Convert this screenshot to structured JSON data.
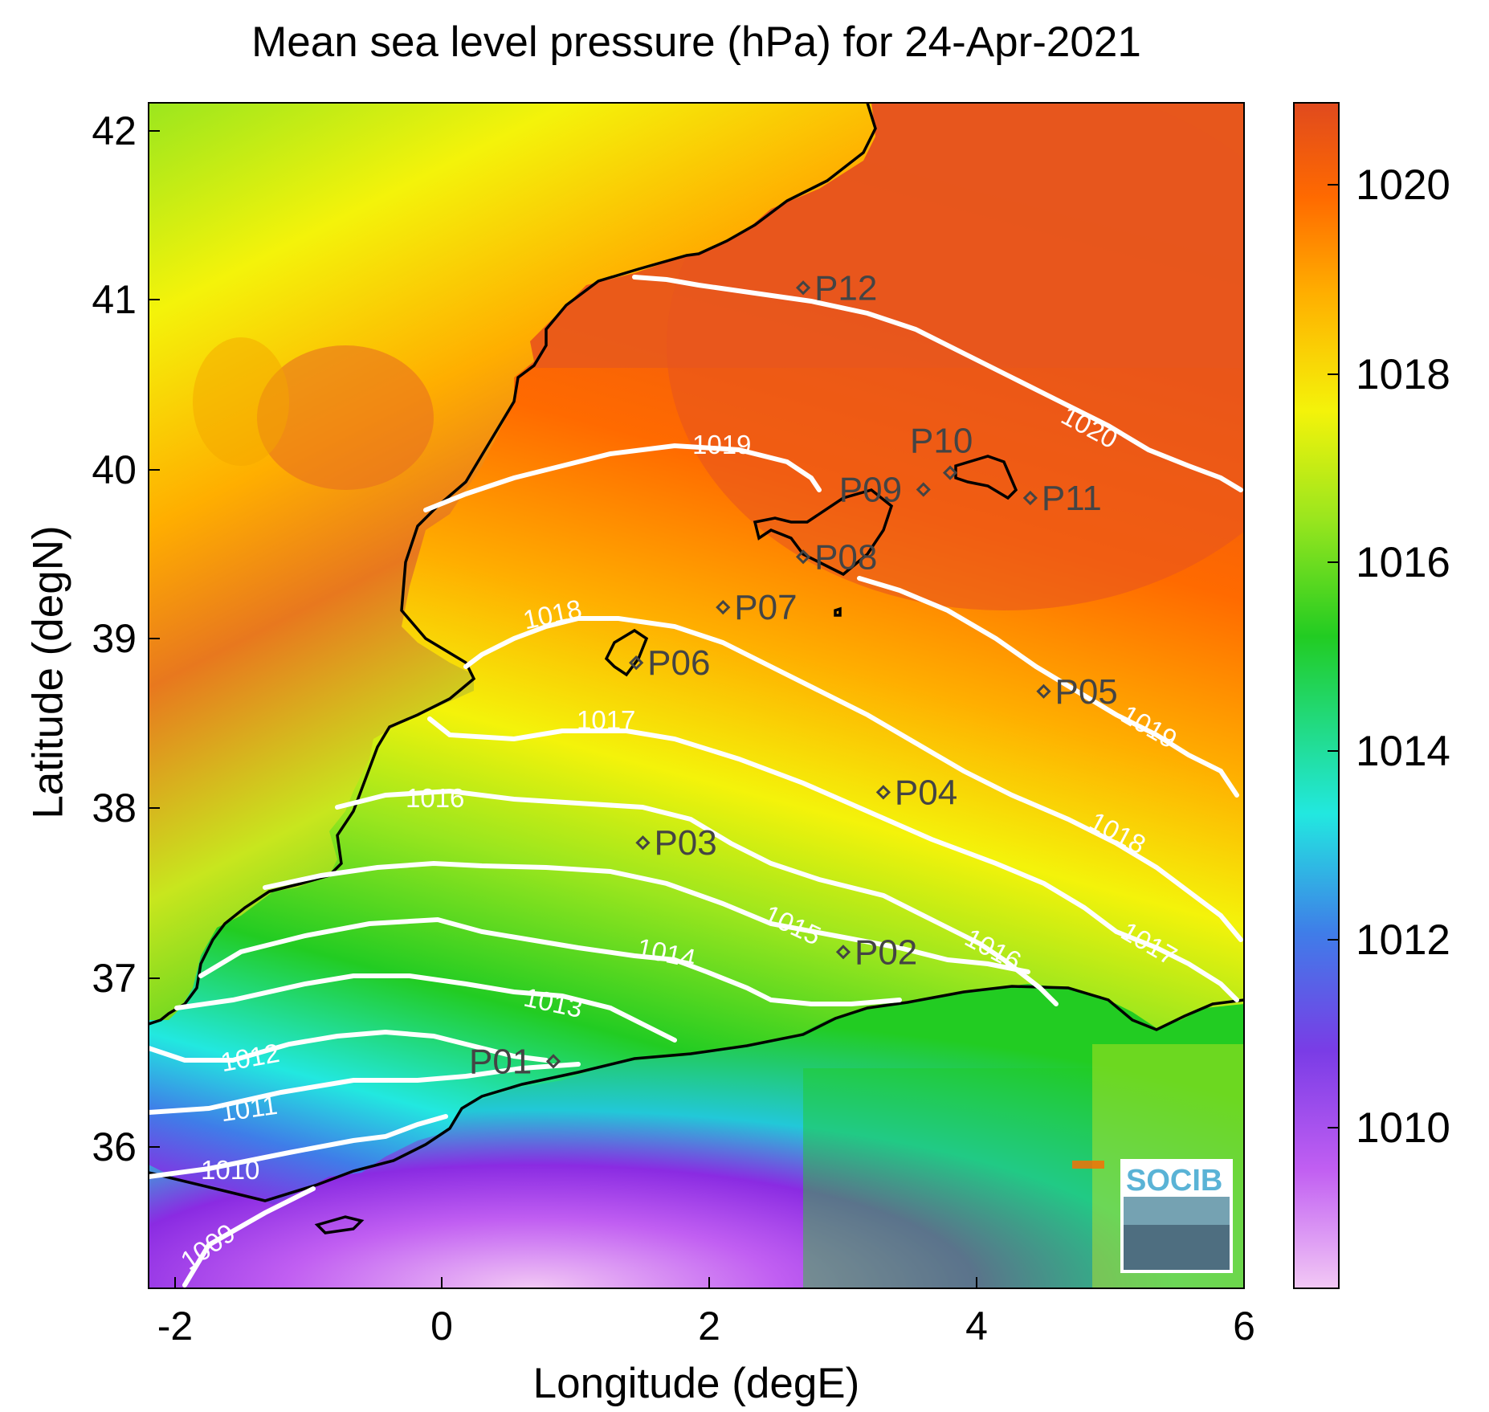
{
  "title": "Mean sea level pressure (hPa) for 24-Apr-2021",
  "xlabel": "Longitude (degE)",
  "ylabel": "Latitude (degN)",
  "logo_text": "SOCIB",
  "colors": {
    "high": "#e04a1e",
    "orange": "#ff8a00",
    "yellow": "#f4f30a",
    "green": "#22cc22",
    "cyan": "#22e8e0",
    "blue": "#3f7de8",
    "purple": "#8a2be2",
    "pink": "#f2c8f5",
    "contour": "#ffffff",
    "coast": "#000000"
  },
  "chart_data": {
    "type": "heatmap",
    "title": "Mean sea level pressure (hPa) for 24-Apr-2021",
    "xlabel": "Longitude (degE)",
    "ylabel": "Latitude (degN)",
    "xlim": [
      -2.2,
      6
    ],
    "ylim": [
      35.15,
      42.2
    ],
    "xticks": [
      "-2",
      "0",
      "2",
      "4",
      "6"
    ],
    "yticks": [
      "36",
      "37",
      "38",
      "39",
      "40",
      "41",
      "42"
    ],
    "colorbar": {
      "range": [
        1008.2,
        1020.8
      ],
      "ticks": [
        "1010",
        "1012",
        "1014",
        "1016",
        "1018",
        "1020"
      ]
    },
    "contour_labels": [
      "1009",
      "1010",
      "1011",
      "1012",
      "1013",
      "1014",
      "1015",
      "1016",
      "1017",
      "1018",
      "1019",
      "1020",
      "1016",
      "1017",
      "1018",
      "1019"
    ],
    "points": [
      {
        "name": "P01",
        "lon": 0.83,
        "lat": 36.5
      },
      {
        "name": "P02",
        "lon": 3.0,
        "lat": 37.15
      },
      {
        "name": "P03",
        "lon": 1.5,
        "lat": 37.8
      },
      {
        "name": "P04",
        "lon": 3.3,
        "lat": 38.1
      },
      {
        "name": "P05",
        "lon": 4.5,
        "lat": 38.7
      },
      {
        "name": "P06",
        "lon": 1.45,
        "lat": 38.87
      },
      {
        "name": "P07",
        "lon": 2.1,
        "lat": 39.2
      },
      {
        "name": "P08",
        "lon": 2.7,
        "lat": 39.5
      },
      {
        "name": "P09",
        "lon": 3.6,
        "lat": 39.9
      },
      {
        "name": "P10",
        "lon": 3.8,
        "lat": 40.0
      },
      {
        "name": "P11",
        "lon": 4.4,
        "lat": 39.85
      },
      {
        "name": "P12",
        "lon": 2.7,
        "lat": 41.1
      }
    ]
  }
}
